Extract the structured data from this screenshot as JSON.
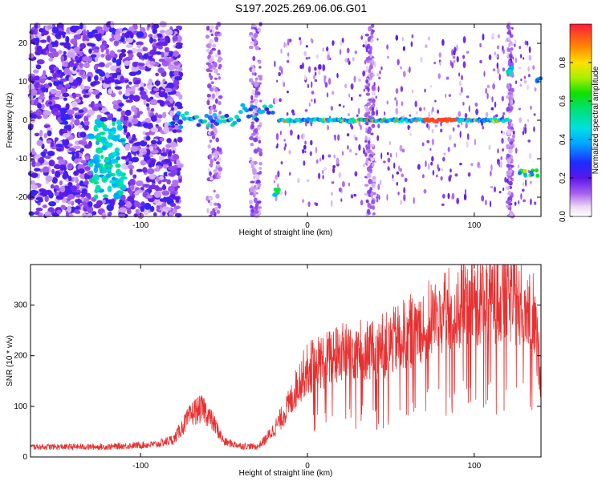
{
  "title": "S197.2025.269.06.06.G01",
  "chart_data": [
    {
      "type": "heatmap",
      "title": "S197.2025.269.06.06.G01",
      "xlabel": "Height of straight line (km)",
      "ylabel": "Frequency (Hz)",
      "xlim": [
        -166,
        140
      ],
      "ylim": [
        -25,
        25
      ],
      "xticks": [
        -100,
        0,
        100
      ],
      "yticks": [
        -20,
        -10,
        0,
        10,
        20
      ],
      "colorbar": {
        "label": "Normalized spectral amplitude",
        "range": [
          0,
          1
        ],
        "ticks": [
          0.0,
          0.2,
          0.4,
          0.6,
          0.8
        ]
      },
      "features": [
        {
          "name": "scattered noise",
          "x": [
            -166,
            -80
          ],
          "freq": [
            -25,
            25
          ]
        },
        {
          "name": "main carrier line",
          "x": [
            -82,
            120
          ],
          "freq": [
            -1,
            1
          ]
        },
        {
          "name": "low sideband",
          "x": [
            -20,
            -17
          ],
          "freq": [
            -20,
            -19
          ]
        },
        {
          "name": "upper sideband",
          "x": [
            120,
            123
          ],
          "freq": [
            12,
            14
          ]
        },
        {
          "name": "lower sideband",
          "x": [
            127,
            138
          ],
          "freq": [
            -15,
            -13
          ]
        },
        {
          "name": "edge sideband",
          "x": [
            136,
            140
          ],
          "freq": [
            9,
            11
          ]
        }
      ]
    },
    {
      "type": "line",
      "xlabel": "Height of straight line (km)",
      "ylabel": "SNR (10 * v/v)",
      "xlim": [
        -166,
        140
      ],
      "ylim": [
        0,
        380
      ],
      "xticks": [
        -100,
        0,
        100
      ],
      "yticks": [
        0,
        100,
        200,
        300
      ],
      "series": [
        {
          "name": "SNR",
          "color": "#e83030",
          "x": [
            -166,
            -120,
            -90,
            -80,
            -75,
            -68,
            -62,
            -55,
            -50,
            -40,
            -30,
            -25,
            -20,
            -15,
            -10,
            -5,
            0,
            5,
            10,
            20,
            30,
            40,
            50,
            60,
            70,
            80,
            90,
            100,
            110,
            120,
            130,
            135,
            140
          ],
          "y": [
            20,
            20,
            25,
            35,
            60,
            90,
            95,
            60,
            30,
            22,
            20,
            35,
            55,
            80,
            110,
            150,
            175,
            185,
            190,
            205,
            215,
            210,
            225,
            245,
            265,
            280,
            295,
            310,
            320,
            315,
            305,
            290,
            160
          ]
        }
      ]
    }
  ]
}
